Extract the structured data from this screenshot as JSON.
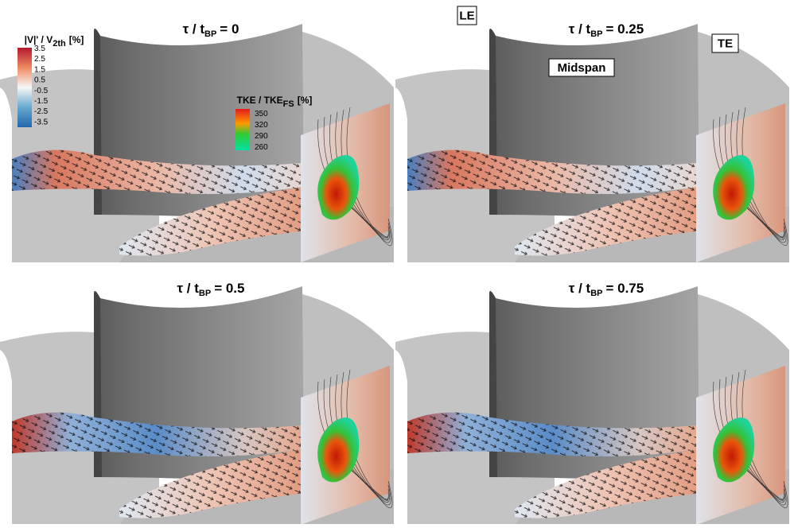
{
  "panels": [
    {
      "title": {
        "main": "τ / t",
        "sub": "BP",
        "value": "= 0"
      }
    },
    {
      "title": {
        "main": "τ / t",
        "sub": "BP",
        "value": "= 0.25"
      }
    },
    {
      "title": {
        "main": "τ / t",
        "sub": "BP",
        "value": "= 0.5"
      }
    },
    {
      "title": {
        "main": "τ / t",
        "sub": "BP",
        "value": "= 0.75"
      }
    }
  ],
  "velocity_legend": {
    "title": {
      "main": "|V|' / V",
      "sub": "2th",
      "unit": "[%]"
    },
    "ticks": [
      "3.5",
      "2.5",
      "1.5",
      "0.5",
      "-0.5",
      "-1.5",
      "-2.5",
      "-3.5"
    ]
  },
  "tke_legend": {
    "title": {
      "main": "TKE / TKE",
      "sub": "FS",
      "unit": "[%]"
    },
    "ticks": [
      "350",
      "320",
      "290",
      "260"
    ]
  },
  "annotations": {
    "le": "LE",
    "te": "TE",
    "midspan": "Midspan"
  }
}
